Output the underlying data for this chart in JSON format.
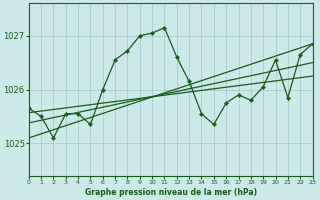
{
  "title": "Graphe pression niveau de la mer (hPa)",
  "background_color": "#cce8e8",
  "plot_bg_color": "#cce8e8",
  "grid_color": "#aacccc",
  "line_color": "#1a5c1a",
  "x_labels": [
    "0",
    "1",
    "2",
    "3",
    "4",
    "5",
    "6",
    "7",
    "8",
    "9",
    "10",
    "11",
    "12",
    "13",
    "14",
    "15",
    "16",
    "17",
    "18",
    "19",
    "20",
    "21",
    "22",
    "23"
  ],
  "y_ticks": [
    1025,
    1026,
    1027
  ],
  "ylim": [
    1024.4,
    1027.6
  ],
  "xlim": [
    0,
    23
  ],
  "zigzag": [
    1025.65,
    1025.5,
    1025.1,
    1025.55,
    1025.55,
    1025.35,
    1026.0,
    1026.55,
    1026.72,
    1027.0,
    1027.05,
    1027.15,
    1026.6,
    1026.15,
    1025.55,
    1025.35,
    1025.75,
    1025.9,
    1025.8,
    1026.05,
    1026.55,
    1025.85,
    1026.65,
    1026.85
  ],
  "trend_lines": [
    [
      1025.57,
      1025.57,
      1026.25
    ],
    [
      1025.38,
      1025.38,
      1026.5
    ],
    [
      1025.1,
      1025.1,
      1026.85
    ]
  ],
  "trend_x": [
    0,
    4,
    23
  ]
}
